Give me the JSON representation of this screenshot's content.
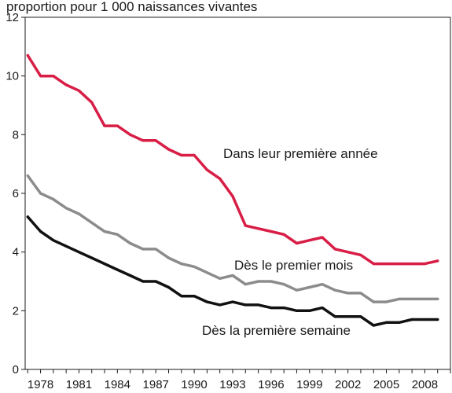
{
  "chart_data": {
    "type": "line",
    "title": "proportion pour 1 000 naissances vivantes",
    "xlabel": "",
    "ylabel": "",
    "xlim": [
      1976.8,
      2010.0
    ],
    "ylim": [
      0,
      12
    ],
    "y_ticks": [
      "0",
      "2",
      "4",
      "6",
      "8",
      "10",
      "12"
    ],
    "x_ticks": [
      "1978",
      "1981",
      "1984",
      "1987",
      "1990",
      "1993",
      "1996",
      "1999",
      "2002",
      "2005",
      "2008"
    ],
    "grid": false,
    "x": [
      1977,
      1978,
      1979,
      1980,
      1981,
      1982,
      1983,
      1984,
      1985,
      1986,
      1987,
      1988,
      1989,
      1990,
      1991,
      1992,
      1993,
      1994,
      1995,
      1996,
      1997,
      1998,
      1999,
      2000,
      2001,
      2002,
      2003,
      2004,
      2005,
      2006,
      2007,
      2008,
      2009
    ],
    "series": [
      {
        "name": "Dans leur première année",
        "color": "#d81e46",
        "values": [
          10.7,
          10.0,
          10.0,
          9.7,
          9.5,
          9.1,
          8.3,
          8.3,
          8.0,
          7.8,
          7.8,
          7.5,
          7.3,
          7.3,
          6.8,
          6.5,
          5.9,
          4.9,
          4.8,
          4.7,
          4.6,
          4.3,
          4.4,
          4.5,
          4.1,
          4.0,
          3.9,
          3.6,
          3.6,
          3.6,
          3.6,
          3.6,
          3.7
        ]
      },
      {
        "name": "Dès le premier mois",
        "color": "#8c8c8c",
        "values": [
          6.6,
          6.0,
          5.8,
          5.5,
          5.3,
          5.0,
          4.7,
          4.6,
          4.3,
          4.1,
          4.1,
          3.8,
          3.6,
          3.5,
          3.3,
          3.1,
          3.2,
          2.9,
          3.0,
          3.0,
          2.9,
          2.7,
          2.8,
          2.9,
          2.7,
          2.6,
          2.6,
          2.3,
          2.3,
          2.4,
          2.4,
          2.4,
          2.4
        ]
      },
      {
        "name": "Dès la première semaine",
        "color": "#111111",
        "values": [
          5.2,
          4.7,
          4.4,
          4.2,
          4.0,
          3.8,
          3.6,
          3.4,
          3.2,
          3.0,
          3.0,
          2.8,
          2.5,
          2.5,
          2.3,
          2.2,
          2.3,
          2.2,
          2.2,
          2.1,
          2.1,
          2.0,
          2.0,
          2.1,
          1.8,
          1.8,
          1.8,
          1.5,
          1.6,
          1.6,
          1.7,
          1.7,
          1.7
        ]
      }
    ]
  }
}
